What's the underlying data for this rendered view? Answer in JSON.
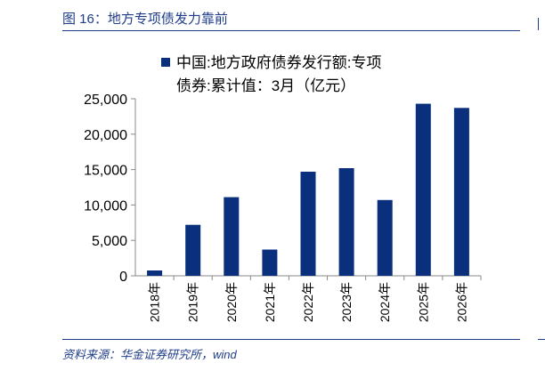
{
  "figure": {
    "title": "图 16：地方专项债发力靠前",
    "source": "资料来源：华金证券研究所，wind"
  },
  "colors": {
    "accent": "#1f3c88",
    "bar": "#0a2f7c"
  },
  "chart_data": {
    "type": "bar",
    "title": "",
    "xlabel": "",
    "ylabel": "",
    "categories": [
      "2018年",
      "2019年",
      "2020年",
      "2021年",
      "2022年",
      "2023年",
      "2024年",
      "2025年",
      "2026年"
    ],
    "series": [
      {
        "name": "中国:地方政府债券发行额:专项债券:累计值：3月（亿元）",
        "legend_lines": [
          "中国:地方政府债券发行额:专项",
          "债券:累计值：3月（亿元）"
        ],
        "values": [
          750,
          7200,
          11100,
          3700,
          14700,
          15200,
          10700,
          24300,
          23700
        ]
      }
    ],
    "ylim": [
      0,
      25000
    ],
    "yticks": [
      0,
      5000,
      10000,
      15000,
      20000,
      25000
    ],
    "ytick_labels": [
      "0",
      "5,000",
      "10,000",
      "15,000",
      "20,000",
      "25,000"
    ],
    "grid": false,
    "legend_position": "top-left"
  }
}
